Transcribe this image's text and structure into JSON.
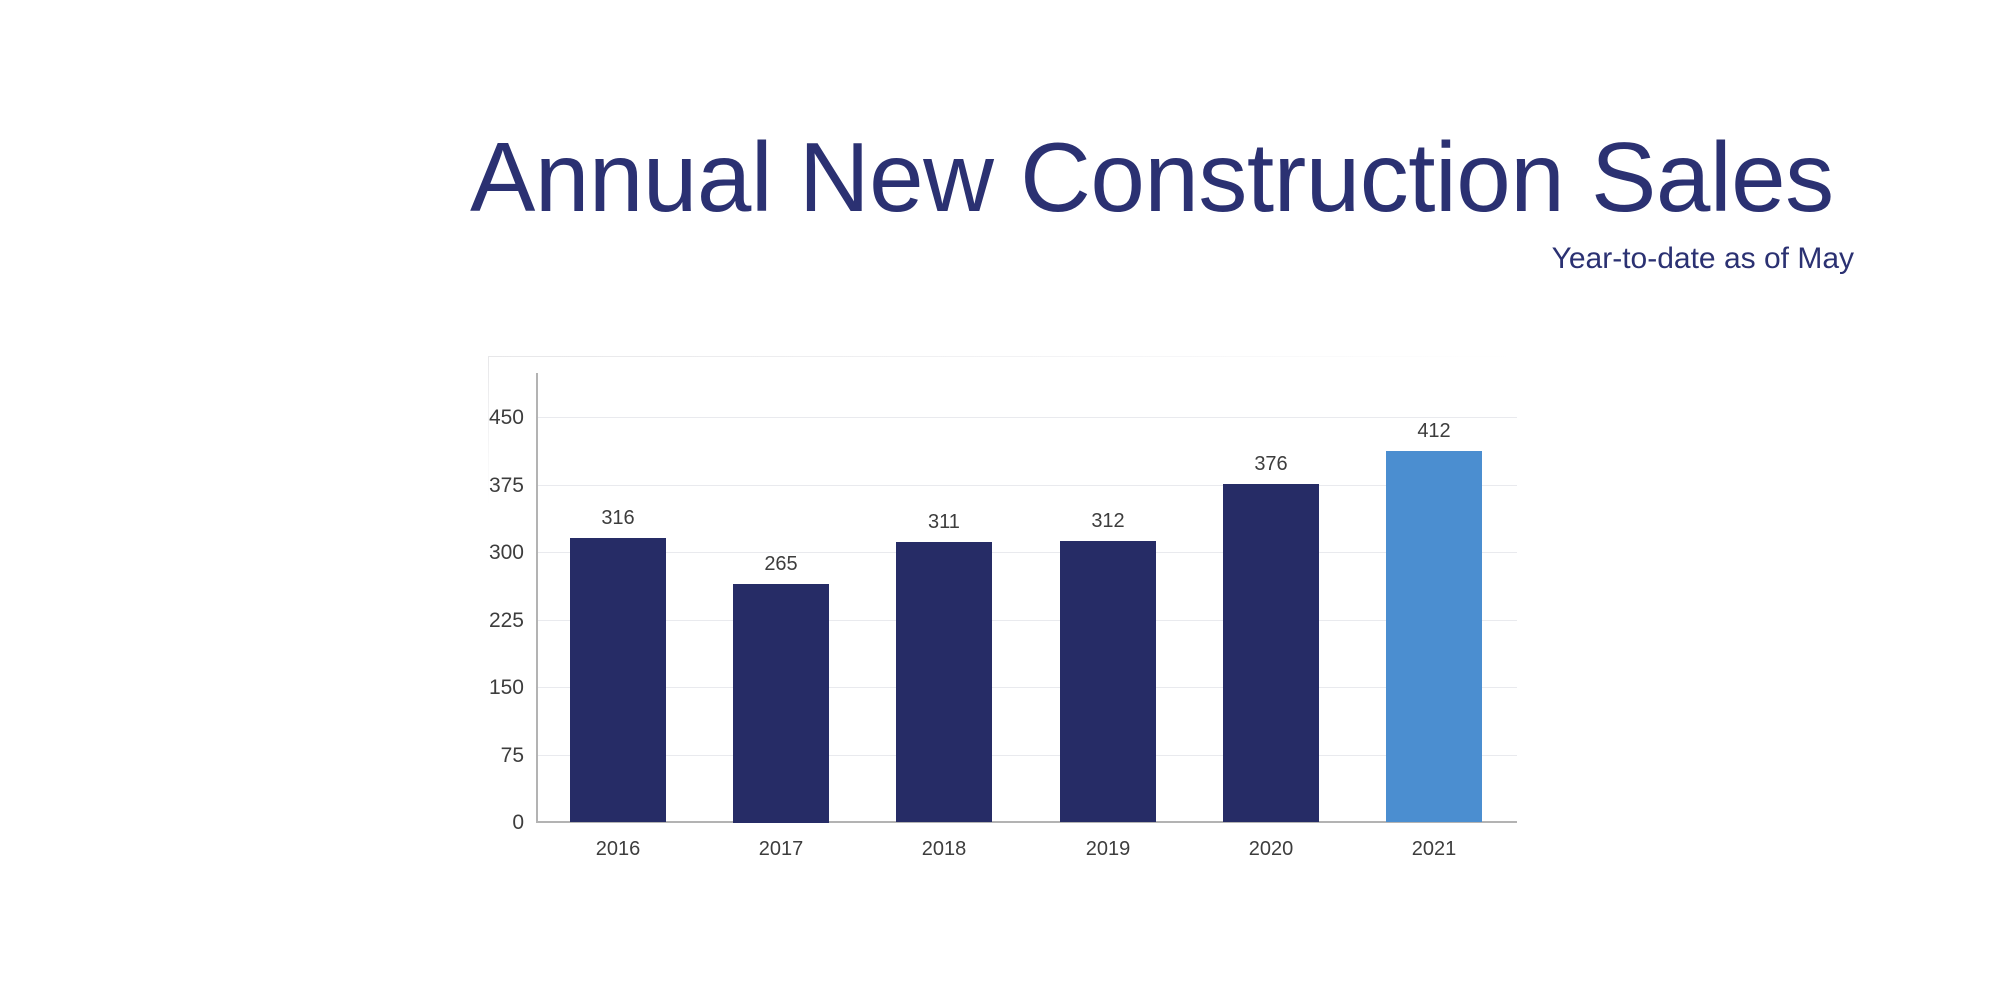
{
  "header": {
    "title": "Annual New Construction Sales",
    "subtitle": "Year-to-date as of May"
  },
  "colors": {
    "title_text": "#2b3172",
    "bar": "#262c66",
    "bar_highlight": "#4b8ed0",
    "gridline": "#e9eaee",
    "axis_line": "#b3b3b3",
    "tick_label": "#3d3d3d"
  },
  "chart_data": {
    "type": "bar",
    "title": "Annual New Construction Sales",
    "subtitle": "Year-to-date as of May",
    "categories": [
      "2016",
      "2017",
      "2018",
      "2019",
      "2020",
      "2021"
    ],
    "values": [
      316,
      265,
      311,
      312,
      376,
      412
    ],
    "value_labels": [
      "316",
      "265",
      "311",
      "312",
      "376",
      "412"
    ],
    "highlight_index": 5,
    "highlighted_category": "2021",
    "yticks": [
      0,
      75,
      150,
      225,
      300,
      375,
      450
    ],
    "ylim": [
      0,
      500
    ],
    "xlabel": "",
    "ylabel": "",
    "grid": true,
    "legend": false
  }
}
